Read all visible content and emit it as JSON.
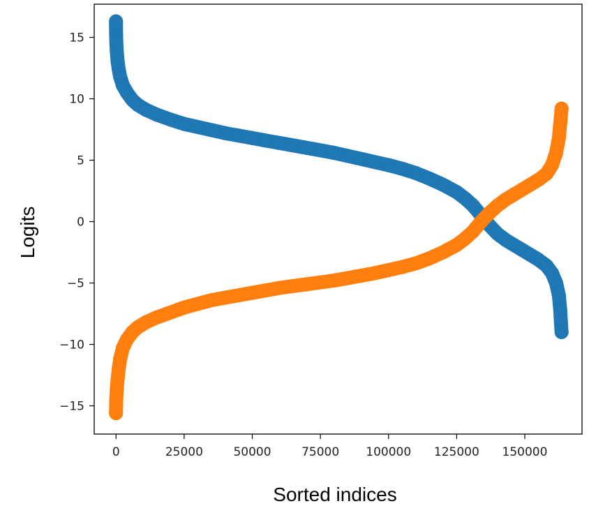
{
  "chart_data": {
    "type": "scatter",
    "title": "",
    "xlabel": "Sorted indices",
    "ylabel": "Logits",
    "xlim": [
      -8000,
      171000
    ],
    "ylim": [
      -17.3,
      17.7
    ],
    "x_ticks": [
      0,
      25000,
      50000,
      75000,
      100000,
      125000,
      150000
    ],
    "x_tick_labels": [
      "0",
      "25000",
      "50000",
      "75000",
      "100000",
      "125000",
      "150000"
    ],
    "y_ticks": [
      -15,
      -10,
      -5,
      0,
      5,
      10,
      15
    ],
    "y_tick_labels": [
      "−15",
      "−10",
      "−5",
      "0",
      "5",
      "10",
      "15"
    ],
    "grid": false,
    "legend": "none",
    "series": [
      {
        "color": "#1f77b4",
        "points": [
          [
            0,
            16.3
          ],
          [
            50,
            15.2
          ],
          [
            150,
            14.4
          ],
          [
            300,
            13.8
          ],
          [
            600,
            13.0
          ],
          [
            1000,
            12.4
          ],
          [
            1500,
            11.8
          ],
          [
            2500,
            11.1
          ],
          [
            4000,
            10.5
          ],
          [
            6000,
            9.9
          ],
          [
            8000,
            9.5
          ],
          [
            11000,
            9.1
          ],
          [
            15000,
            8.7
          ],
          [
            20000,
            8.3
          ],
          [
            25000,
            7.95
          ],
          [
            30000,
            7.7
          ],
          [
            35000,
            7.45
          ],
          [
            40000,
            7.2
          ],
          [
            45000,
            7.0
          ],
          [
            50000,
            6.8
          ],
          [
            55000,
            6.6
          ],
          [
            60000,
            6.4
          ],
          [
            65000,
            6.2
          ],
          [
            70000,
            6.0
          ],
          [
            75000,
            5.8
          ],
          [
            80000,
            5.6
          ],
          [
            85000,
            5.35
          ],
          [
            90000,
            5.1
          ],
          [
            95000,
            4.85
          ],
          [
            100000,
            4.6
          ],
          [
            105000,
            4.3
          ],
          [
            110000,
            3.95
          ],
          [
            115000,
            3.5
          ],
          [
            120000,
            3.0
          ],
          [
            125000,
            2.4
          ],
          [
            128000,
            1.9
          ],
          [
            131000,
            1.3
          ],
          [
            134000,
            0.5
          ],
          [
            137000,
            -0.3
          ],
          [
            140000,
            -1.0
          ],
          [
            143000,
            -1.5
          ],
          [
            146000,
            -1.9
          ],
          [
            149000,
            -2.3
          ],
          [
            152000,
            -2.7
          ],
          [
            155000,
            -3.1
          ],
          [
            158000,
            -3.6
          ],
          [
            160000,
            -4.2
          ],
          [
            161500,
            -5.0
          ],
          [
            162500,
            -6.0
          ],
          [
            163000,
            -7.2
          ],
          [
            163300,
            -8.3
          ],
          [
            163500,
            -9.0
          ]
        ]
      },
      {
        "color": "#ff7f0e",
        "points": [
          [
            0,
            -15.6
          ],
          [
            100,
            -14.5
          ],
          [
            300,
            -13.6
          ],
          [
            600,
            -12.8
          ],
          [
            1000,
            -12.0
          ],
          [
            1500,
            -11.2
          ],
          [
            2500,
            -10.3
          ],
          [
            4000,
            -9.6
          ],
          [
            6000,
            -9.0
          ],
          [
            8000,
            -8.6
          ],
          [
            11000,
            -8.2
          ],
          [
            15000,
            -7.8
          ],
          [
            20000,
            -7.4
          ],
          [
            25000,
            -7.0
          ],
          [
            30000,
            -6.7
          ],
          [
            35000,
            -6.4
          ],
          [
            40000,
            -6.2
          ],
          [
            45000,
            -6.0
          ],
          [
            50000,
            -5.8
          ],
          [
            55000,
            -5.6
          ],
          [
            60000,
            -5.4
          ],
          [
            65000,
            -5.25
          ],
          [
            70000,
            -5.1
          ],
          [
            75000,
            -4.95
          ],
          [
            80000,
            -4.8
          ],
          [
            85000,
            -4.6
          ],
          [
            90000,
            -4.4
          ],
          [
            95000,
            -4.2
          ],
          [
            100000,
            -3.95
          ],
          [
            105000,
            -3.7
          ],
          [
            110000,
            -3.4
          ],
          [
            115000,
            -3.0
          ],
          [
            120000,
            -2.5
          ],
          [
            125000,
            -1.9
          ],
          [
            128000,
            -1.4
          ],
          [
            131000,
            -0.8
          ],
          [
            134000,
            0.0
          ],
          [
            137000,
            0.7
          ],
          [
            140000,
            1.3
          ],
          [
            143000,
            1.8
          ],
          [
            146000,
            2.2
          ],
          [
            149000,
            2.6
          ],
          [
            152000,
            3.0
          ],
          [
            155000,
            3.4
          ],
          [
            158000,
            3.9
          ],
          [
            160000,
            4.6
          ],
          [
            161500,
            5.6
          ],
          [
            162500,
            6.8
          ],
          [
            163000,
            8.0
          ],
          [
            163500,
            9.2
          ]
        ]
      }
    ]
  }
}
